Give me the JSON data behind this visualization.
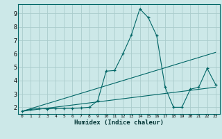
{
  "xlabel": "Humidex (Indice chaleur)",
  "bg_color": "#cce8e8",
  "grid_color": "#aacccc",
  "line_color": "#006666",
  "xlim": [
    -0.5,
    23.5
  ],
  "ylim": [
    1.5,
    9.7
  ],
  "yticks": [
    2,
    3,
    4,
    5,
    6,
    7,
    8,
    9
  ],
  "xtick_labels": [
    "0",
    "1",
    "2",
    "3",
    "4",
    "5",
    "6",
    "7",
    "8",
    "9",
    "10",
    "11",
    "12",
    "13",
    "14",
    "15",
    "16",
    "17",
    "18",
    "19",
    "20",
    "21",
    "22",
    "23"
  ],
  "series1_x": [
    0,
    1,
    2,
    3,
    4,
    5,
    6,
    7,
    8,
    9,
    10,
    11,
    12,
    13,
    14,
    15,
    16,
    17,
    18,
    19,
    20,
    21,
    22,
    23
  ],
  "series1_y": [
    1.7,
    1.85,
    1.9,
    1.88,
    1.9,
    1.9,
    1.92,
    1.95,
    2.0,
    2.5,
    4.7,
    4.75,
    6.0,
    7.4,
    9.35,
    8.7,
    7.35,
    3.5,
    2.0,
    2.0,
    3.35,
    3.5,
    4.9,
    3.7
  ],
  "series2_x": [
    0,
    23
  ],
  "series2_y": [
    1.7,
    6.1
  ],
  "series3_x": [
    0,
    23
  ],
  "series3_y": [
    1.7,
    3.5
  ]
}
